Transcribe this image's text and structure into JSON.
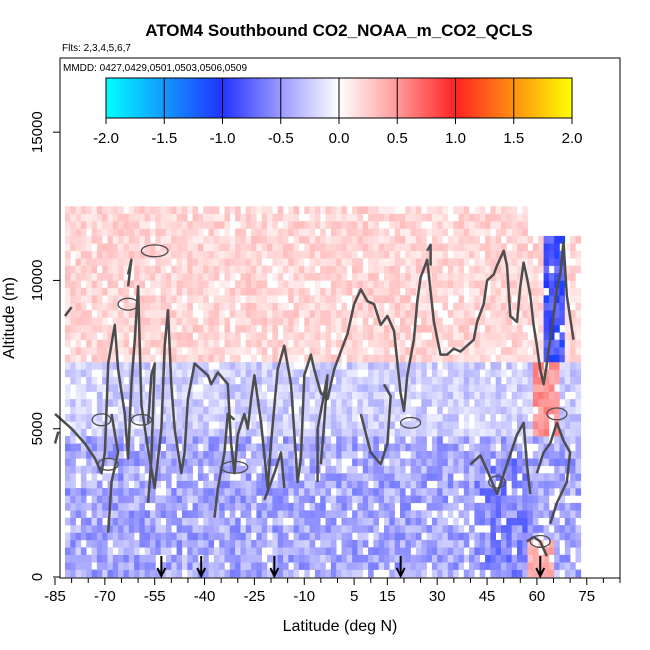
{
  "chart_data": {
    "type": "heatmap",
    "title": "ATOM4 Southbound CO2_NOAA_m_CO2_QCLS",
    "flights_text": "Flts: 2,3,4,5,6,7",
    "dates_text": "MMDD: 0427,0429,0501,0503,0506,0509",
    "xlabel": "Latitude (deg N)",
    "ylabel": "Altitude (m)",
    "xlim": [
      -85,
      85
    ],
    "ylim": [
      0,
      17500
    ],
    "x_ticks": [
      -85,
      -70,
      -55,
      -40,
      -25,
      -10,
      5,
      15,
      30,
      45,
      60,
      75
    ],
    "x_tick_labels": [
      "-85",
      "-70",
      "-55",
      "-40",
      "-25",
      "-10",
      "5",
      "15",
      "30",
      "45",
      "60",
      "75"
    ],
    "x_minor_ticks": [
      -80,
      -75,
      -65,
      -60,
      -50,
      -45,
      -35,
      -30,
      -20,
      -15,
      -5,
      0,
      10,
      20,
      25,
      35,
      40,
      50,
      55,
      65,
      70,
      80,
      85
    ],
    "y_ticks": [
      0,
      5000,
      10000,
      15000
    ],
    "y_tick_labels": [
      "0",
      "5000",
      "10000",
      "15000"
    ],
    "colorbar": {
      "range": [
        -2.0,
        2.0
      ],
      "ticks": [
        -2.0,
        -1.5,
        -1.0,
        -0.5,
        0.0,
        0.5,
        1.0,
        1.5,
        2.0
      ],
      "tick_labels": [
        "-2.0",
        "-1.5",
        "-1.0",
        "-0.5",
        "0.0",
        "0.5",
        "1.0",
        "1.5",
        "2.0"
      ],
      "stops": [
        {
          "value": -2.0,
          "color": "#00ffff"
        },
        {
          "value": -1.0,
          "color": "#2233ff"
        },
        {
          "value": -0.5,
          "color": "#9a9aff"
        },
        {
          "value": 0.0,
          "color": "#ffffff"
        },
        {
          "value": 0.5,
          "color": "#ff9a9a"
        },
        {
          "value": 1.0,
          "color": "#ff2222"
        },
        {
          "value": 2.0,
          "color": "#ffff00"
        }
      ]
    },
    "flight_arrows_lat": [
      -53,
      -41,
      -19,
      19,
      61
    ],
    "heatmap_extent": {
      "lat_min": -82,
      "lat_max": 72,
      "alt_min": 0,
      "alt_max": 12500
    },
    "zero_contour_color": "#4d4d4d"
  }
}
